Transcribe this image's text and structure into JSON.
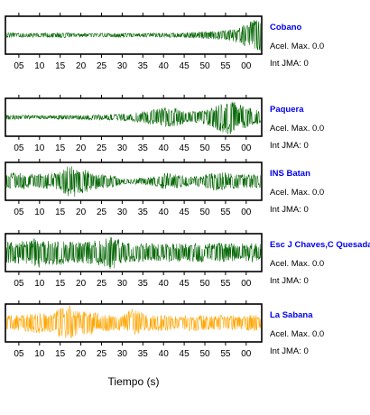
{
  "chart_data": {
    "type": "line",
    "xlabel": "Tiempo (s)",
    "x_tick_labels": [
      "05",
      "10",
      "15",
      "20",
      "25",
      "30",
      "35",
      "40",
      "45",
      "50",
      "55",
      "00"
    ],
    "acel_label": "Acel. Max.",
    "int_label": "Int JMA:",
    "stations": [
      {
        "name": "Cobano",
        "color": "#006400",
        "acel_max": "0.0",
        "int_jma": "0",
        "envelope": [
          0.15,
          0.12,
          0.12,
          0.12,
          0.12,
          0.15,
          0.12,
          0.1,
          0.1,
          0.12,
          0.1,
          0.12,
          0.1,
          0.12,
          0.12,
          0.12,
          0.12,
          0.15,
          0.2,
          0.2,
          0.25,
          0.3,
          0.45,
          0.75,
          1.0
        ]
      },
      {
        "name": "Paquera",
        "color": "#006400",
        "acel_max": "0.0",
        "int_jma": "0",
        "envelope": [
          0.12,
          0.12,
          0.12,
          0.1,
          0.1,
          0.12,
          0.12,
          0.12,
          0.15,
          0.15,
          0.18,
          0.2,
          0.25,
          0.35,
          0.45,
          0.55,
          0.5,
          0.35,
          0.3,
          0.45,
          0.75,
          1.0,
          0.7,
          0.5,
          0.35
        ]
      },
      {
        "name": "INS Batan",
        "color": "#006400",
        "acel_max": "0.0",
        "int_jma": "0",
        "envelope": [
          0.45,
          0.5,
          0.4,
          0.4,
          0.45,
          0.5,
          0.95,
          0.8,
          0.5,
          0.4,
          0.35,
          0.15,
          0.15,
          0.2,
          0.25,
          0.5,
          0.4,
          0.3,
          0.3,
          0.4,
          0.55,
          0.45,
          0.4,
          0.4,
          0.35
        ]
      },
      {
        "name": "Esc J Chaves,C Quesada",
        "color": "#006400",
        "acel_max": "0.0",
        "int_jma": "0",
        "envelope": [
          0.6,
          0.6,
          0.7,
          0.85,
          0.7,
          0.7,
          0.6,
          0.6,
          0.65,
          0.8,
          0.95,
          0.6,
          0.5,
          0.55,
          0.5,
          0.5,
          0.55,
          0.5,
          0.55,
          0.5,
          0.55,
          0.5,
          0.5,
          0.55,
          0.5
        ]
      },
      {
        "name": "La Sabana",
        "color": "#ffa500",
        "acel_max": "0.0",
        "int_jma": "0",
        "envelope": [
          0.4,
          0.45,
          0.5,
          0.6,
          0.45,
          0.8,
          1.0,
          0.6,
          0.7,
          0.5,
          0.45,
          0.45,
          0.85,
          0.5,
          0.45,
          0.45,
          0.4,
          0.45,
          0.45,
          0.4,
          0.45,
          0.45,
          0.4,
          0.45,
          0.45
        ]
      }
    ]
  }
}
